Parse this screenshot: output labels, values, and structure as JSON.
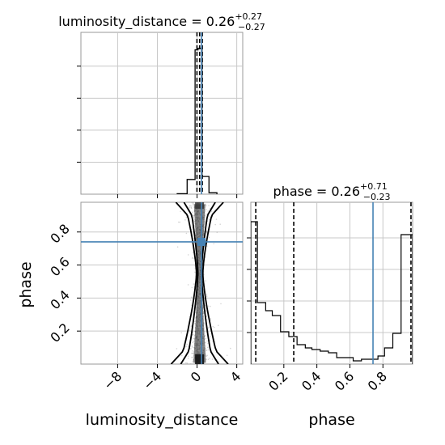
{
  "chart_data": {
    "type": "corner",
    "parameters": [
      "luminosity_distance",
      "phase"
    ],
    "truth_color": "#4682b4",
    "panels": [
      {
        "type": "histogram",
        "parameter": "luminosity_distance",
        "title": {
          "prefix": "luminosity_distance = ",
          "value": "0.26",
          "plus": "+0.27",
          "minus": "−0.27"
        },
        "xlim": [
          -11.7,
          4.6
        ],
        "bins": [
          [
            -2.0,
            -1.0,
            0.003
          ],
          [
            -1.0,
            -0.2,
            0.1
          ],
          [
            -0.2,
            0.1,
            0.98
          ],
          [
            0.1,
            0.5,
            0.99
          ],
          [
            0.5,
            1.2,
            0.12
          ],
          [
            1.2,
            2.0,
            0.01
          ]
        ],
        "quantiles": [
          -0.01,
          0.26,
          0.53
        ],
        "truth": 0.45,
        "grid": true
      },
      {
        "type": "histogram",
        "parameter": "phase",
        "title": {
          "prefix": "phase = ",
          "value": "0.26",
          "plus": "+0.71",
          "minus": "−0.23"
        },
        "xlim": [
          0.0,
          0.98
        ],
        "ylim": [
          0,
          1
        ],
        "bins": [
          [
            0.0,
            0.04,
            0.88
          ],
          [
            0.04,
            0.09,
            0.38
          ],
          [
            0.09,
            0.13,
            0.33
          ],
          [
            0.13,
            0.18,
            0.3
          ],
          [
            0.18,
            0.23,
            0.2
          ],
          [
            0.23,
            0.28,
            0.17
          ],
          [
            0.28,
            0.33,
            0.12
          ],
          [
            0.33,
            0.37,
            0.1
          ],
          [
            0.37,
            0.42,
            0.09
          ],
          [
            0.42,
            0.47,
            0.08
          ],
          [
            0.47,
            0.52,
            0.07
          ],
          [
            0.52,
            0.57,
            0.04
          ],
          [
            0.57,
            0.62,
            0.04
          ],
          [
            0.62,
            0.67,
            0.02
          ],
          [
            0.67,
            0.72,
            0.03
          ],
          [
            0.72,
            0.77,
            0.03
          ],
          [
            0.77,
            0.81,
            0.05
          ],
          [
            0.81,
            0.86,
            0.1
          ],
          [
            0.86,
            0.91,
            0.19
          ],
          [
            0.91,
            0.98,
            0.8
          ]
        ],
        "quantiles": [
          0.03,
          0.26,
          0.97
        ],
        "truth": 0.74,
        "xticks": [
          "0.2",
          "0.4",
          "0.6",
          "0.8"
        ],
        "xtick_values": [
          0.2,
          0.4,
          0.6,
          0.8
        ],
        "xlabel": "phase",
        "grid": true
      },
      {
        "type": "2d-density",
        "x_parameter": "luminosity_distance",
        "y_parameter": "phase",
        "xlim": [
          -11.7,
          4.6
        ],
        "ylim": [
          0.0,
          0.98
        ],
        "xticks": [
          "−8",
          "−4",
          "0",
          "4"
        ],
        "xtick_values": [
          -8,
          -4,
          0,
          4
        ],
        "yticks": [
          "0.2",
          "0.4",
          "0.6",
          "0.8"
        ],
        "ytick_values": [
          0.2,
          0.4,
          0.6,
          0.8
        ],
        "xlabel": "luminosity_distance",
        "ylabel": "phase",
        "truth": {
          "x": 0.45,
          "y": 0.74
        },
        "grid": true
      }
    ]
  }
}
